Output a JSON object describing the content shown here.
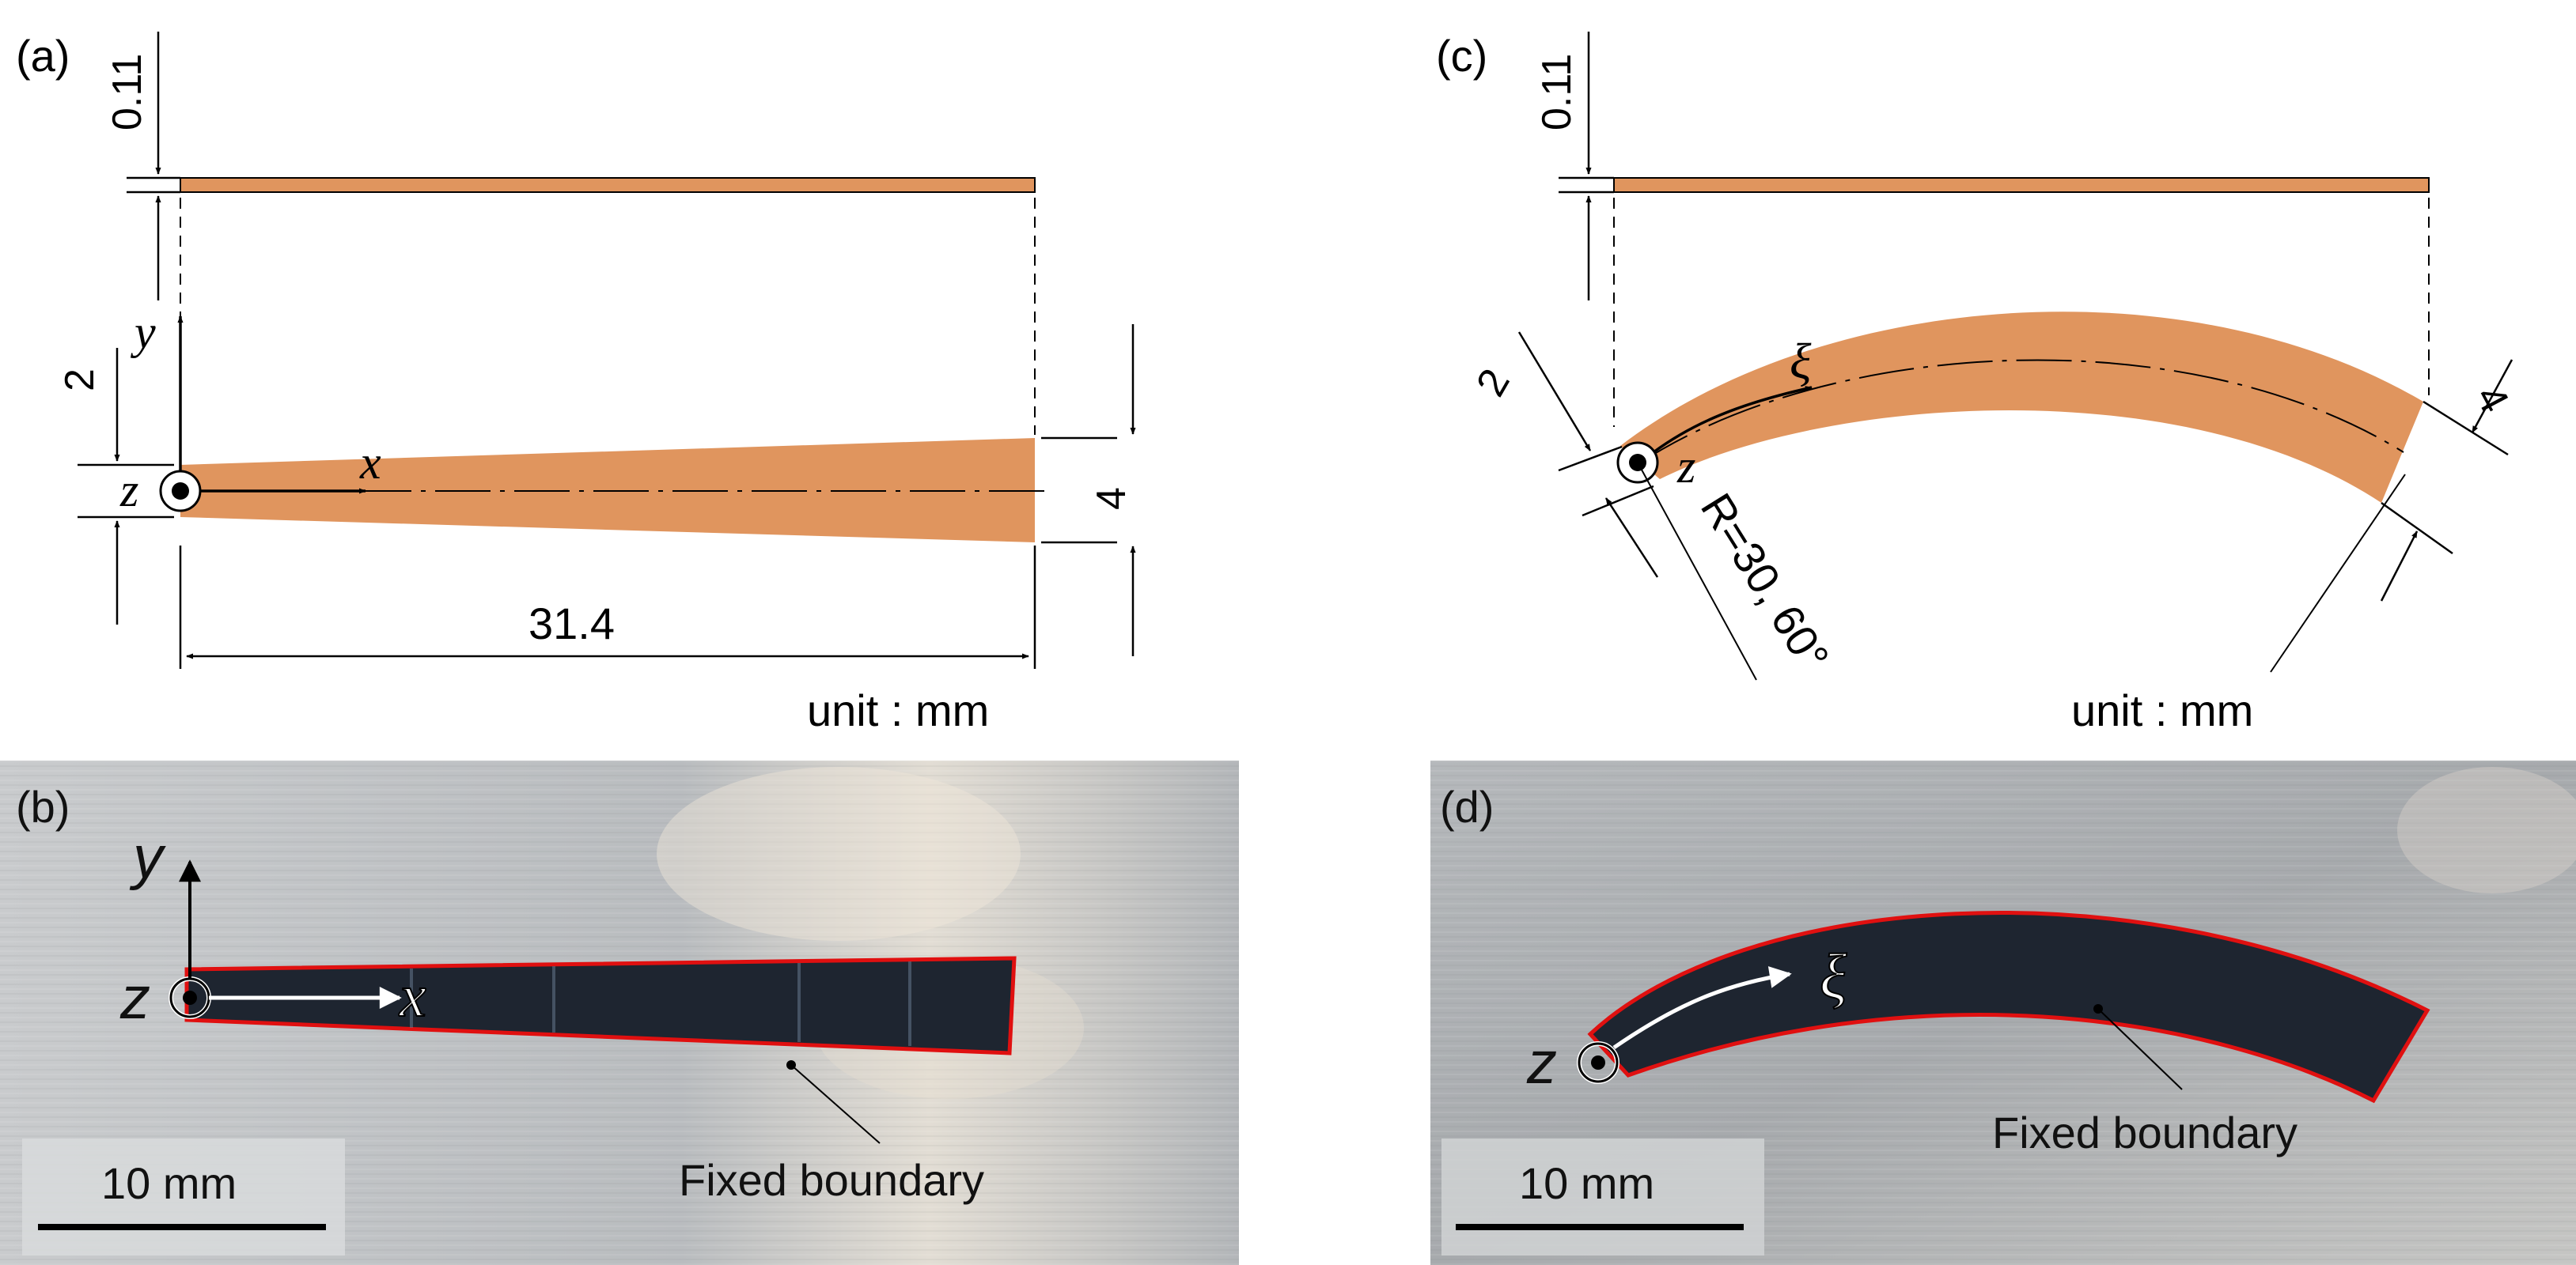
{
  "panels": {
    "a": {
      "label": "(a)",
      "dim_thickness": "0.11",
      "dim_root_half_width": "2",
      "dim_tip_width": "4",
      "dim_length": "31.4",
      "axis_y": "y",
      "axis_x": "x",
      "axis_z": "z",
      "unit": "unit : mm"
    },
    "b": {
      "label": "(b)",
      "axis_y": "y",
      "axis_x": "x",
      "axis_z": "z",
      "scale_bar": "10 mm",
      "boundary": "Fixed boundary"
    },
    "c": {
      "label": "(c)",
      "dim_thickness": "0.11",
      "dim_root_half_width": "2",
      "dim_tip_width": "4",
      "radius_angle": "R=30, 60°",
      "axis_xi": "ξ",
      "axis_z": "z",
      "unit": "unit : mm"
    },
    "d": {
      "label": "(d)",
      "axis_xi": "ξ",
      "axis_z": "z",
      "scale_bar": "10 mm",
      "boundary": "Fixed boundary"
    }
  },
  "colors": {
    "beam_fill": "#e0955e",
    "boundary": "#e01010",
    "photo_metal": "#b8bcc0",
    "photo_slot": "#1e2530"
  }
}
